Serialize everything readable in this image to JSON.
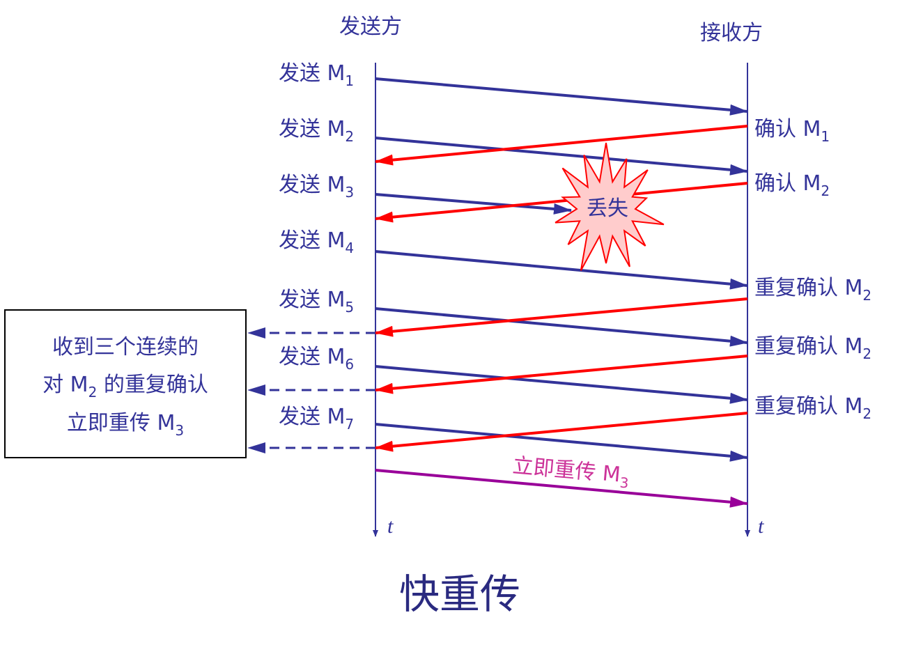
{
  "lifelines": {
    "sender": "发送方",
    "receiver": "接收方",
    "time": "t"
  },
  "sends": [
    {
      "label": "发送 M",
      "sub": "1"
    },
    {
      "label": "发送 M",
      "sub": "2"
    },
    {
      "label": "发送 M",
      "sub": "3"
    },
    {
      "label": "发送 M",
      "sub": "4"
    },
    {
      "label": "发送 M",
      "sub": "5"
    },
    {
      "label": "发送 M",
      "sub": "6"
    },
    {
      "label": "发送 M",
      "sub": "7"
    }
  ],
  "acks": [
    {
      "label": "确认 M",
      "sub": "1"
    },
    {
      "label": "确认 M",
      "sub": "2"
    },
    {
      "label": "重复确认 M",
      "sub": "2"
    },
    {
      "label": "重复确认 M",
      "sub": "2"
    },
    {
      "label": "重复确认 M",
      "sub": "2"
    }
  ],
  "lost": "丢失",
  "note": {
    "line1": "收到三个连续的",
    "line2": {
      "pre": "对 M",
      "sub": "2",
      "post": " 的重复确认"
    },
    "line3": {
      "pre": "立即重传 M",
      "sub": "3"
    }
  },
  "retransmit": {
    "pre": "立即重传 M",
    "sub": "3"
  },
  "title": "快重传"
}
